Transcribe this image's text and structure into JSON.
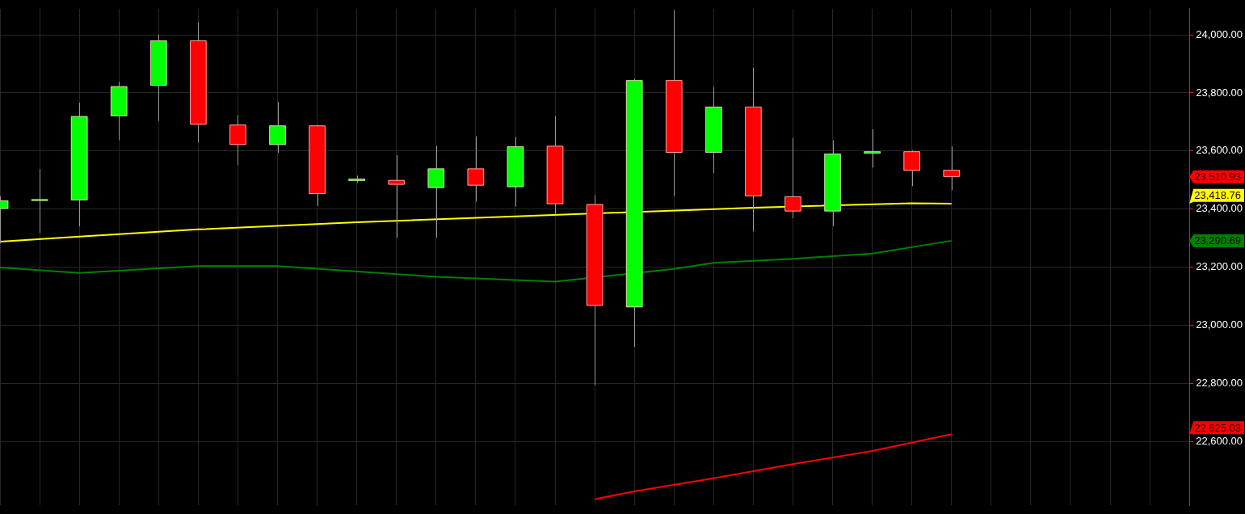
{
  "chart_data": {
    "type": "candlestick",
    "tick_labels": "y",
    "grid": true,
    "categories": [
      null,
      null,
      null,
      null,
      null,
      null,
      null,
      null,
      null,
      null,
      null,
      null,
      null,
      null,
      null,
      null,
      null,
      null,
      null,
      null,
      null,
      null,
      null,
      null,
      null,
      null,
      null,
      null,
      null,
      null,
      null
    ],
    "ohlc": [
      [
        23401,
        23444,
        23282,
        23430
      ],
      [
        23432,
        23538,
        23317,
        23434
      ],
      [
        23430,
        23766,
        23341,
        23720
      ],
      [
        23720,
        23839,
        23637,
        23823
      ],
      [
        23825,
        24000,
        23704,
        23981
      ],
      [
        23981,
        24043,
        23629,
        23691
      ],
      [
        23691,
        23723,
        23551,
        23621
      ],
      [
        23621,
        23769,
        23594,
        23688
      ],
      [
        23688,
        23690,
        23411,
        23452
      ],
      [
        23497,
        23515,
        23490,
        23505
      ],
      [
        23500,
        23586,
        23301,
        23484
      ],
      [
        23473,
        23618,
        23301,
        23540
      ],
      [
        23540,
        23651,
        23425,
        23481
      ],
      [
        23476,
        23648,
        23409,
        23616
      ],
      [
        23618,
        23720,
        23382,
        23417
      ],
      [
        23417,
        23449,
        22793,
        23067
      ],
      [
        23062,
        23849,
        22925,
        23844
      ],
      [
        23844,
        24085,
        23444,
        23594
      ],
      [
        23594,
        23820,
        23524,
        23753
      ],
      [
        23753,
        23887,
        23323,
        23444
      ],
      [
        23444,
        23645,
        23368,
        23392
      ],
      [
        23392,
        23637,
        23341,
        23591
      ],
      [
        23591,
        23675,
        23543,
        23599
      ],
      [
        23599,
        23602,
        23479,
        23532
      ],
      [
        23535,
        23616,
        23465,
        23511
      ],
      null,
      null,
      null,
      null,
      null,
      null
    ],
    "colors": [
      "#00ff00",
      "#00ff00",
      "#00ff00",
      "#00ff00",
      "#00ff00",
      "#ff0000",
      "#ff0000",
      "#00ff00",
      "#ff0000",
      "#00ff00",
      "#ff0000",
      "#00ff00",
      "#ff0000",
      "#00ff00",
      "#ff0000",
      "#ff0000",
      "#00ff00",
      "#ff0000",
      "#00ff00",
      "#ff0000",
      "#ff0000",
      "#00ff00",
      "#00ff00",
      "#ff0000",
      "#ff0000",
      null,
      null,
      null,
      null,
      null,
      null
    ],
    "series": [
      {
        "type": "line",
        "color": "#ffff00",
        "values": [
          23288,
          null,
          23305,
          null,
          null,
          23330,
          null,
          null,
          null,
          23355,
          null,
          null,
          null,
          23375,
          null,
          null,
          null,
          null,
          null,
          23405,
          null,
          null,
          null,
          23420,
          23419,
          null,
          null,
          null,
          null,
          null,
          null
        ]
      },
      {
        "type": "line",
        "color": "#008000",
        "values": [
          23199,
          null,
          23180,
          null,
          null,
          23204,
          null,
          23204,
          null,
          null,
          null,
          23167,
          null,
          null,
          23150,
          null,
          null,
          23194,
          23215,
          null,
          23229,
          null,
          23247,
          null,
          23291,
          null,
          null,
          null,
          null,
          null,
          null
        ]
      },
      {
        "type": "line",
        "color": "#ff0000",
        "values": [
          null,
          null,
          null,
          null,
          null,
          null,
          null,
          null,
          null,
          null,
          null,
          null,
          null,
          null,
          null,
          22401,
          22428,
          null,
          22473,
          null,
          22522,
          null,
          22567,
          null,
          22625,
          null,
          null,
          null,
          null,
          null,
          null
        ]
      }
    ],
    "ylim": [
      22380,
      24090
    ],
    "yticks": [
      {
        "value": 22600,
        "label": "22,600.00"
      },
      {
        "value": 22800,
        "label": "22,800.00"
      },
      {
        "value": 23000,
        "label": "23,000.00"
      },
      {
        "value": 23200,
        "label": "23,200.00"
      },
      {
        "value": 23400,
        "label": "23,400.00"
      },
      {
        "value": 23600,
        "label": "23,600.00"
      },
      {
        "value": 23800,
        "label": "23,800.00"
      },
      {
        "value": 24000,
        "label": "24,000.00"
      }
    ],
    "annotations": [
      "23,510.93",
      "23,418.76",
      "23,290.69",
      "22,625.03"
    ]
  }
}
